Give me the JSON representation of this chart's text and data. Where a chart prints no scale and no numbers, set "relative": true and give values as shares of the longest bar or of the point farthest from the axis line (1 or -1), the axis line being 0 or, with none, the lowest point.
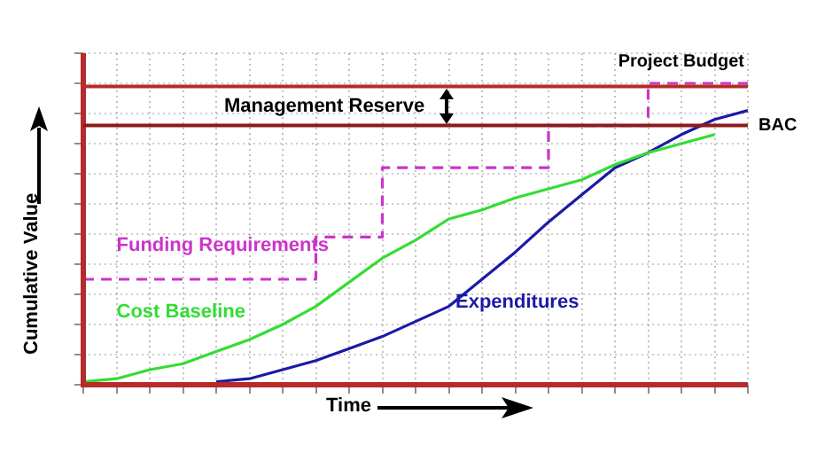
{
  "chart_data": {
    "type": "line",
    "relative": true,
    "xlabel": "Time",
    "ylabel": "Cumulative Value",
    "categories": [
      null,
      null,
      null,
      null,
      null,
      null,
      null,
      null,
      null,
      null,
      null,
      null,
      null,
      null,
      null,
      null,
      null,
      null,
      null,
      null,
      null
    ],
    "tick_labels": false,
    "grid": true,
    "marker": "none",
    "series": [
      {
        "name": "Cost Baseline",
        "color": "#33dd33",
        "values": [
          0.01,
          0.02,
          0.05,
          0.07,
          0.11,
          0.15,
          0.2,
          0.26,
          0.34,
          0.42,
          0.48,
          0.55,
          0.58,
          0.62,
          0.65,
          0.68,
          0.73,
          0.77,
          0.8,
          0.83,
          null
        ]
      },
      {
        "name": "Expenditures",
        "color": "#1a1aa6",
        "values": [
          null,
          null,
          null,
          null,
          0.01,
          0.02,
          0.05,
          0.08,
          0.12,
          0.16,
          0.21,
          0.26,
          0.35,
          0.44,
          0.54,
          0.63,
          0.72,
          0.77,
          0.83,
          0.88,
          0.91
        ]
      },
      {
        "name": "Funding Requirements",
        "type": "step",
        "line_style": "dashed",
        "color": "#cc33cc",
        "values": [
          0.35,
          0.35,
          0.35,
          0.35,
          0.35,
          0.35,
          0.35,
          0.35,
          0.49,
          0.49,
          0.72,
          0.72,
          0.72,
          0.72,
          0.72,
          0.86,
          0.86,
          0.86,
          1,
          1,
          1
        ]
      }
    ],
    "ref_lines": [
      {
        "axis": "y",
        "value": 0.99,
        "label": "Project Budget",
        "color": "#b52a2a"
      },
      {
        "axis": "y",
        "value": 0.86,
        "label": "BAC",
        "color": "#8b1a1a"
      }
    ],
    "annotations": [
      "Management Reserve"
    ]
  }
}
